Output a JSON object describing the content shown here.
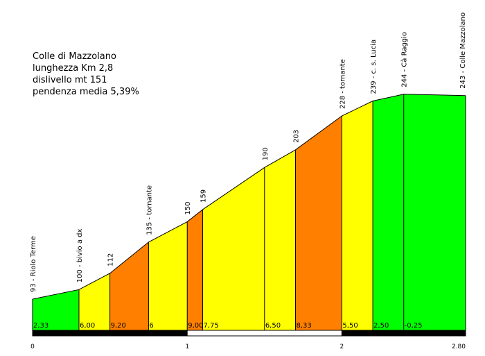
{
  "info": {
    "name": "Colle di Mazzolano",
    "length": "lunghezza Km 2,8",
    "climb": "dislivello mt 151",
    "grade": "pendenza media 5,39%"
  },
  "chart_data": {
    "type": "area",
    "title": "Colle di Mazzolano",
    "xlabel": "",
    "ylabel": "",
    "xlim": [
      0,
      2.8
    ],
    "ylim": [
      70,
      250
    ],
    "x_tick_labels": [
      "0",
      "1",
      "2",
      "2.80"
    ],
    "x_ticks": [
      0,
      1,
      2,
      2.8
    ],
    "points": [
      {
        "x": 0.0,
        "y": 93,
        "label": "93 - Riolo Terme"
      },
      {
        "x": 0.3,
        "y": 100,
        "label": "100 - bivio a dx"
      },
      {
        "x": 0.5,
        "y": 112,
        "label": "112"
      },
      {
        "x": 0.75,
        "y": 135,
        "label": "135 - tornante"
      },
      {
        "x": 1.0,
        "y": 150,
        "label": "150"
      },
      {
        "x": 1.1,
        "y": 159,
        "label": "159"
      },
      {
        "x": 1.5,
        "y": 190,
        "label": "190"
      },
      {
        "x": 1.7,
        "y": 203,
        "label": "203"
      },
      {
        "x": 2.0,
        "y": 228,
        "label": "228 - tornante"
      },
      {
        "x": 2.2,
        "y": 239,
        "label": "239 - c. s. Lucia"
      },
      {
        "x": 2.4,
        "y": 244,
        "label": "244 - Cà Raggio"
      },
      {
        "x": 2.8,
        "y": 243,
        "label": "243 - Colle Mazzolano"
      }
    ],
    "segments": [
      {
        "grade": "2,33",
        "color": "#00ff00"
      },
      {
        "grade": "6,00",
        "color": "#ffff00"
      },
      {
        "grade": "9,20",
        "color": "#ff7f00"
      },
      {
        "grade": "6",
        "color": "#ffff00"
      },
      {
        "grade": "9,00",
        "color": "#ff7f00"
      },
      {
        "grade": "7,75",
        "color": "#ffff00"
      },
      {
        "grade": "6,50",
        "color": "#ffff00"
      },
      {
        "grade": "8,33",
        "color": "#ff7f00"
      },
      {
        "grade": "5,50",
        "color": "#ffff00"
      },
      {
        "grade": "2,50",
        "color": "#00ff00"
      },
      {
        "grade": "-0,25",
        "color": "#00ff00"
      }
    ],
    "grid": false,
    "legend": "none"
  }
}
